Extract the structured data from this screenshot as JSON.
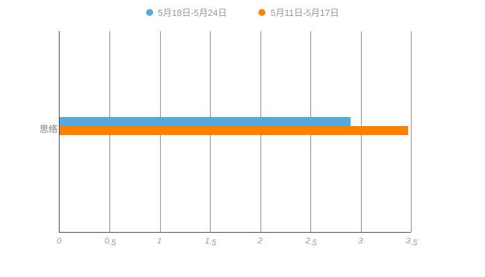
{
  "chart_data": {
    "type": "bar",
    "orientation": "horizontal",
    "title": "",
    "xlabel": "",
    "ylabel": "",
    "categories": [
      "思络"
    ],
    "series": [
      {
        "name": "5月18日-5月24日",
        "color": "#55aadd",
        "values": [
          2.9
        ]
      },
      {
        "name": "5月11日-5月17日",
        "color": "#ff8000",
        "values": [
          3.47
        ]
      }
    ],
    "x_ticks": [
      "0",
      "0.5",
      "1",
      "1.5",
      "2",
      "2.5",
      "3",
      "3.5"
    ],
    "xlim": [
      0,
      3.5
    ],
    "grid": true,
    "legend_position": "top",
    "background": "#ffffff"
  }
}
